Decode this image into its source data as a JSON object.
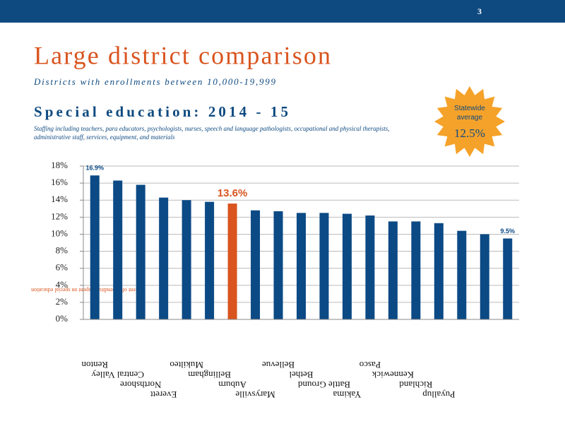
{
  "page_number": "3",
  "header": {
    "title": "Large district comparison",
    "subtitle": "Districts with enrollments between 10,000-19,999"
  },
  "section": {
    "title": "Special education: 2014 - 15",
    "description": "Staffing including teachers, para educators, psychologists, nurses, speech and language pathologists, occupational and physical therapists, administrative staff, services, equipment, and materials"
  },
  "callout": {
    "label": "Statewide average",
    "value": "12.5%"
  },
  "chart_data": {
    "type": "bar",
    "y_label": "Percent of expenditures spent on special education",
    "categories": [
      "Renton",
      "Central Valley",
      "Northshore",
      "Everett",
      "Mukilteo",
      "Bellingham",
      "Auburn",
      "Marysville",
      "Bellevue",
      "Bethel",
      "Battle Ground",
      "Yakima",
      "Pasco",
      "Kennewick",
      "Richland",
      "Puyallup",
      null,
      null,
      null
    ],
    "values": [
      16.9,
      16.3,
      15.8,
      14.3,
      14.0,
      13.8,
      13.6,
      12.8,
      12.7,
      12.5,
      12.5,
      12.4,
      12.2,
      11.5,
      11.5,
      11.3,
      10.4,
      10.0,
      9.5
    ],
    "value_labels": [
      "16.9%",
      null,
      null,
      null,
      null,
      null,
      "13.6%",
      null,
      null,
      null,
      null,
      null,
      null,
      null,
      null,
      null,
      null,
      null,
      "9.5%"
    ],
    "color": "#0b4a85",
    "highlight_color": "#d9541e",
    "highlight_index": 6,
    "ylim": [
      0,
      18
    ],
    "yticks": [
      {
        "value": 0,
        "label": "0%"
      },
      {
        "value": 2,
        "label": "2%"
      },
      {
        "value": 4,
        "label": "4%"
      },
      {
        "value": 6,
        "label": "6%"
      },
      {
        "value": 8,
        "label": "8%"
      },
      {
        "value": 10,
        "label": "10%"
      },
      {
        "value": 12,
        "label": "12%"
      },
      {
        "value": 14,
        "label": "14%"
      },
      {
        "value": 16,
        "label": "16%"
      },
      {
        "value": 18,
        "label": "18%"
      }
    ],
    "grid": true
  }
}
